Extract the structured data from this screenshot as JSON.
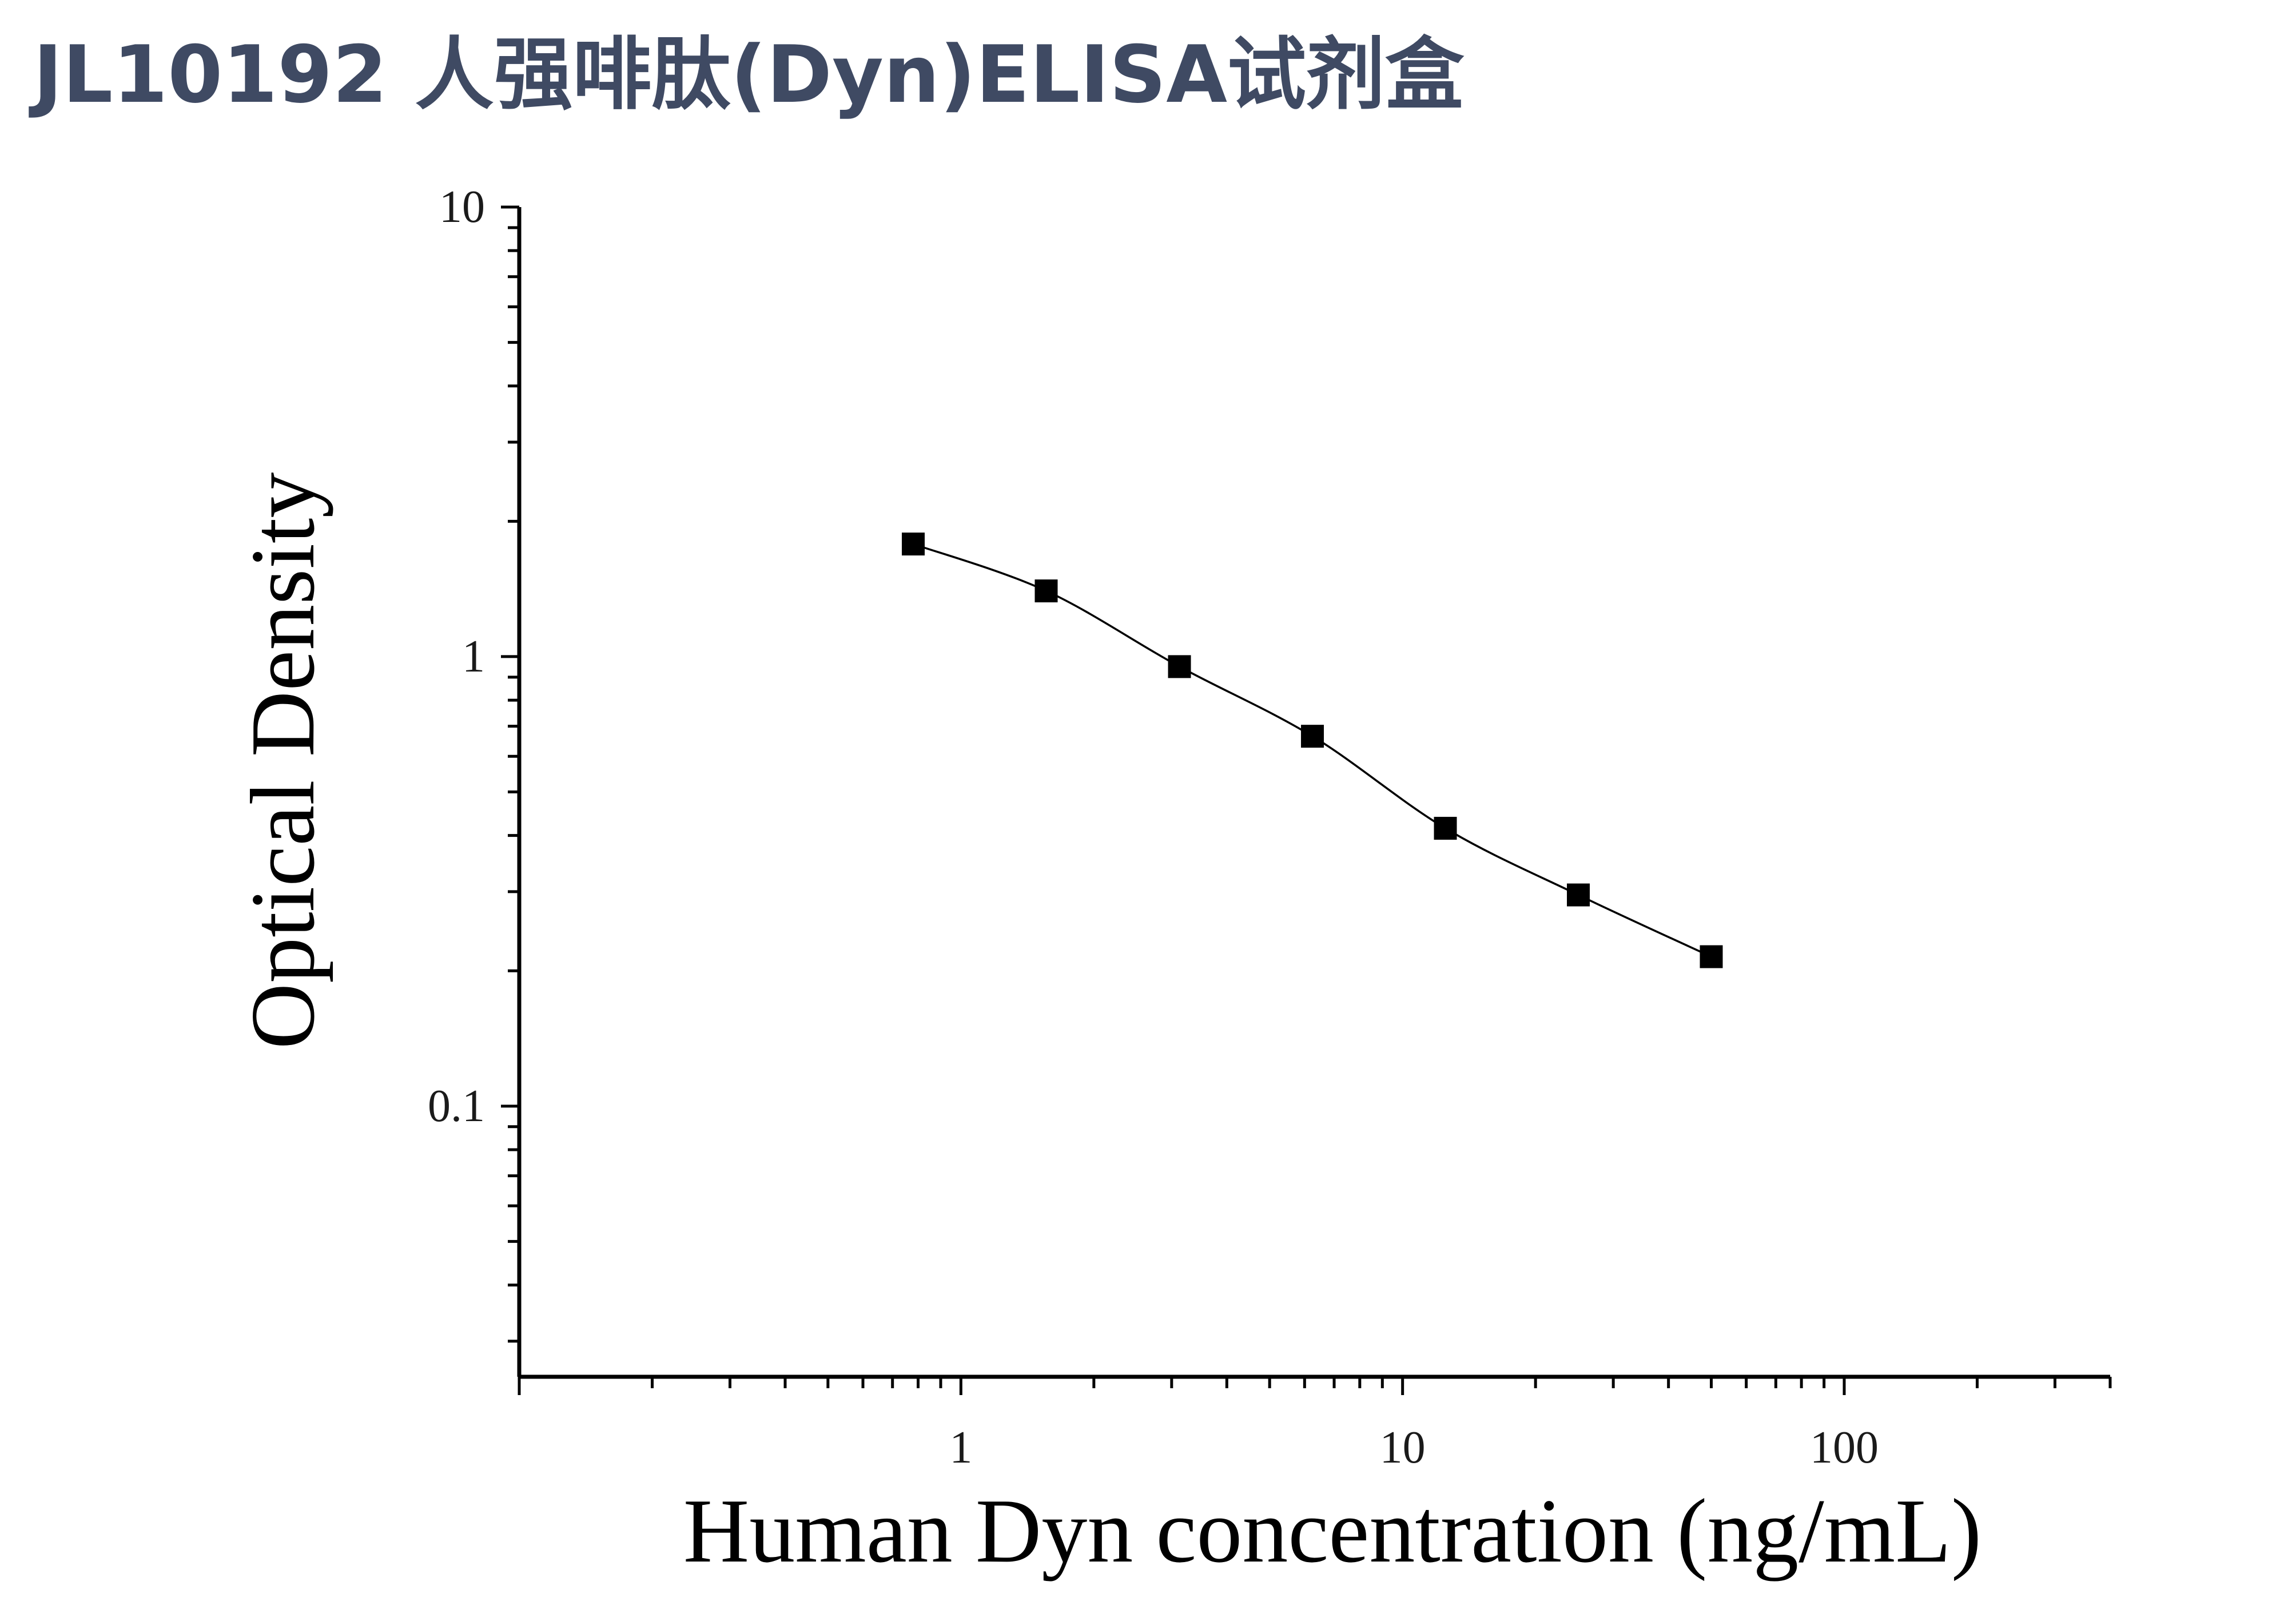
{
  "title": "JL10192 人强啡肽(Dyn)ELISA试剂盒",
  "chart_data": {
    "type": "scatter",
    "title": "JL10192 人强啡肽(Dyn)ELISA试剂盒",
    "xlabel": "Human Dyn concentration (ng/mL)",
    "ylabel": "Optical Density",
    "x_scale": "log",
    "y_scale": "log",
    "xlim": [
      0.1,
      400
    ],
    "ylim": [
      0.025,
      10
    ],
    "x_ticks": [
      "1",
      "10",
      "100"
    ],
    "y_ticks": [
      "0.1",
      "1",
      "10"
    ],
    "grid": false,
    "legend": "none",
    "marker": "square",
    "fit_curve": true,
    "series": [
      {
        "x": [
          0.78,
          1.56,
          3.125,
          6.25,
          12.5,
          25,
          50
        ],
        "y": [
          1.78,
          1.4,
          0.95,
          0.665,
          0.415,
          0.295,
          0.215
        ]
      }
    ],
    "colors": {
      "marker": "#000000",
      "curve": "#000000",
      "title": "#3f4a63"
    }
  }
}
